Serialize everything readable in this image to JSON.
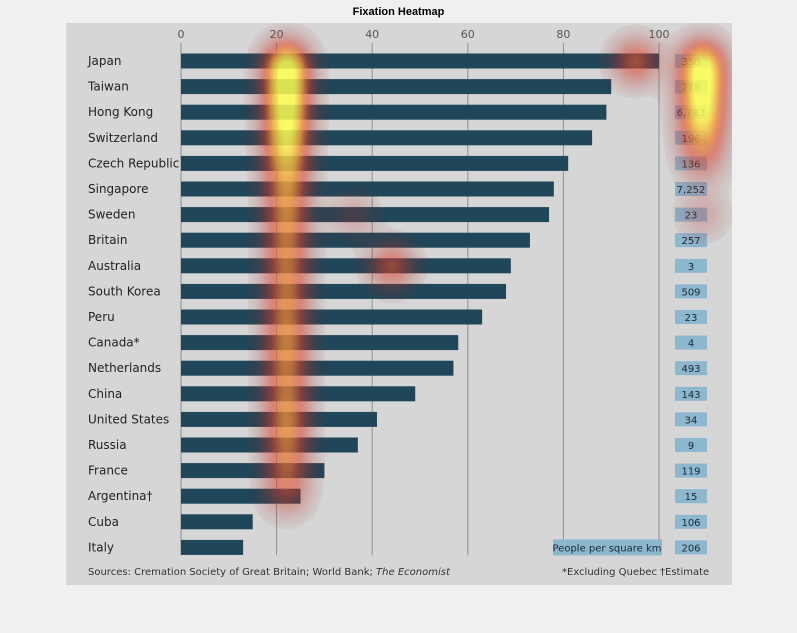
{
  "figure_title": "Fixation Heatmap",
  "colors": {
    "bar": "#1f4659",
    "panel_bg": "#d6d6d6",
    "figure_bg": "#f0f0f0",
    "grid": "#8f8f8f",
    "density_box": "#8db6cf",
    "heat_low": "#d2462c",
    "heat_high": "#ffff4a"
  },
  "chart_data": {
    "type": "bar",
    "orientation": "horizontal",
    "xlim": [
      0,
      100
    ],
    "xticks": [
      "0",
      "20",
      "40",
      "60",
      "80",
      "100"
    ],
    "grid": true,
    "categories": [
      "Japan",
      "Taiwan",
      "Hong Kong",
      "Switzerland",
      "Czech Republic",
      "Singapore",
      "Sweden",
      "Britain",
      "Australia",
      "South Korea",
      "Peru",
      "Canada*",
      "Netherlands",
      "China",
      "United States",
      "Russia",
      "France",
      "Argentina†",
      "Cuba",
      "Italy"
    ],
    "values": [
      100,
      90,
      89,
      86,
      81,
      78,
      77,
      73,
      69,
      68,
      63,
      58,
      57,
      49,
      41,
      37,
      30,
      25,
      15,
      13
    ],
    "density_label": "People per square km",
    "density_values": [
      "350",
      "718",
      "6,783",
      "196",
      "136",
      "7,252",
      "23",
      "257",
      "3",
      "509",
      "23",
      "4",
      "493",
      "143",
      "34",
      "9",
      "119",
      "15",
      "106",
      "206"
    ],
    "sources_prefix": "Sources: Cremation Society of Great Britain; World Bank; ",
    "sources_italic": "The Economist",
    "footnote_canada": "*Excluding Quebec",
    "footnote_estimate": "†Estimate"
  },
  "heatmap": [
    {
      "row": 0,
      "x": 22,
      "strength": 1.0
    },
    {
      "row": 1,
      "x": 22,
      "strength": 0.85
    },
    {
      "row": 2,
      "x": 22,
      "strength": 0.85
    },
    {
      "row": 3,
      "x": 22,
      "strength": 0.8
    },
    {
      "row": 4,
      "x": 22,
      "strength": 0.65
    },
    {
      "row": 5,
      "x": 22,
      "strength": 0.55
    },
    {
      "row": 6,
      "x": 22,
      "strength": 0.55
    },
    {
      "row": 7,
      "x": 22,
      "strength": 0.5
    },
    {
      "row": 8,
      "x": 22,
      "strength": 0.5
    },
    {
      "row": 9,
      "x": 22,
      "strength": 0.5
    },
    {
      "row": 10,
      "x": 22,
      "strength": 0.5
    },
    {
      "row": 11,
      "x": 22,
      "strength": 0.55
    },
    {
      "row": 12,
      "x": 22,
      "strength": 0.5
    },
    {
      "row": 13,
      "x": 22,
      "strength": 0.5
    },
    {
      "row": 14,
      "x": 22,
      "strength": 0.55
    },
    {
      "row": 15,
      "x": 22,
      "strength": 0.5
    },
    {
      "row": 16,
      "x": 22,
      "strength": 0.45
    },
    {
      "row": 17,
      "x": 22,
      "strength": 0.4
    },
    {
      "row": 0,
      "x": 109,
      "strength": 1.0
    },
    {
      "row": 1,
      "x": 109,
      "strength": 0.85
    },
    {
      "row": 2,
      "x": 109,
      "strength": 0.85
    },
    {
      "row": 3,
      "x": 109,
      "strength": 0.6
    },
    {
      "row": 4,
      "x": 109,
      "strength": 0.35
    },
    {
      "row": 6,
      "x": 109,
      "strength": 0.3
    },
    {
      "row": 0,
      "x": 95,
      "strength": 0.7
    },
    {
      "row": 8,
      "x": 44,
      "strength": 0.65
    },
    {
      "row": 6,
      "x": 36,
      "strength": 0.3
    }
  ]
}
